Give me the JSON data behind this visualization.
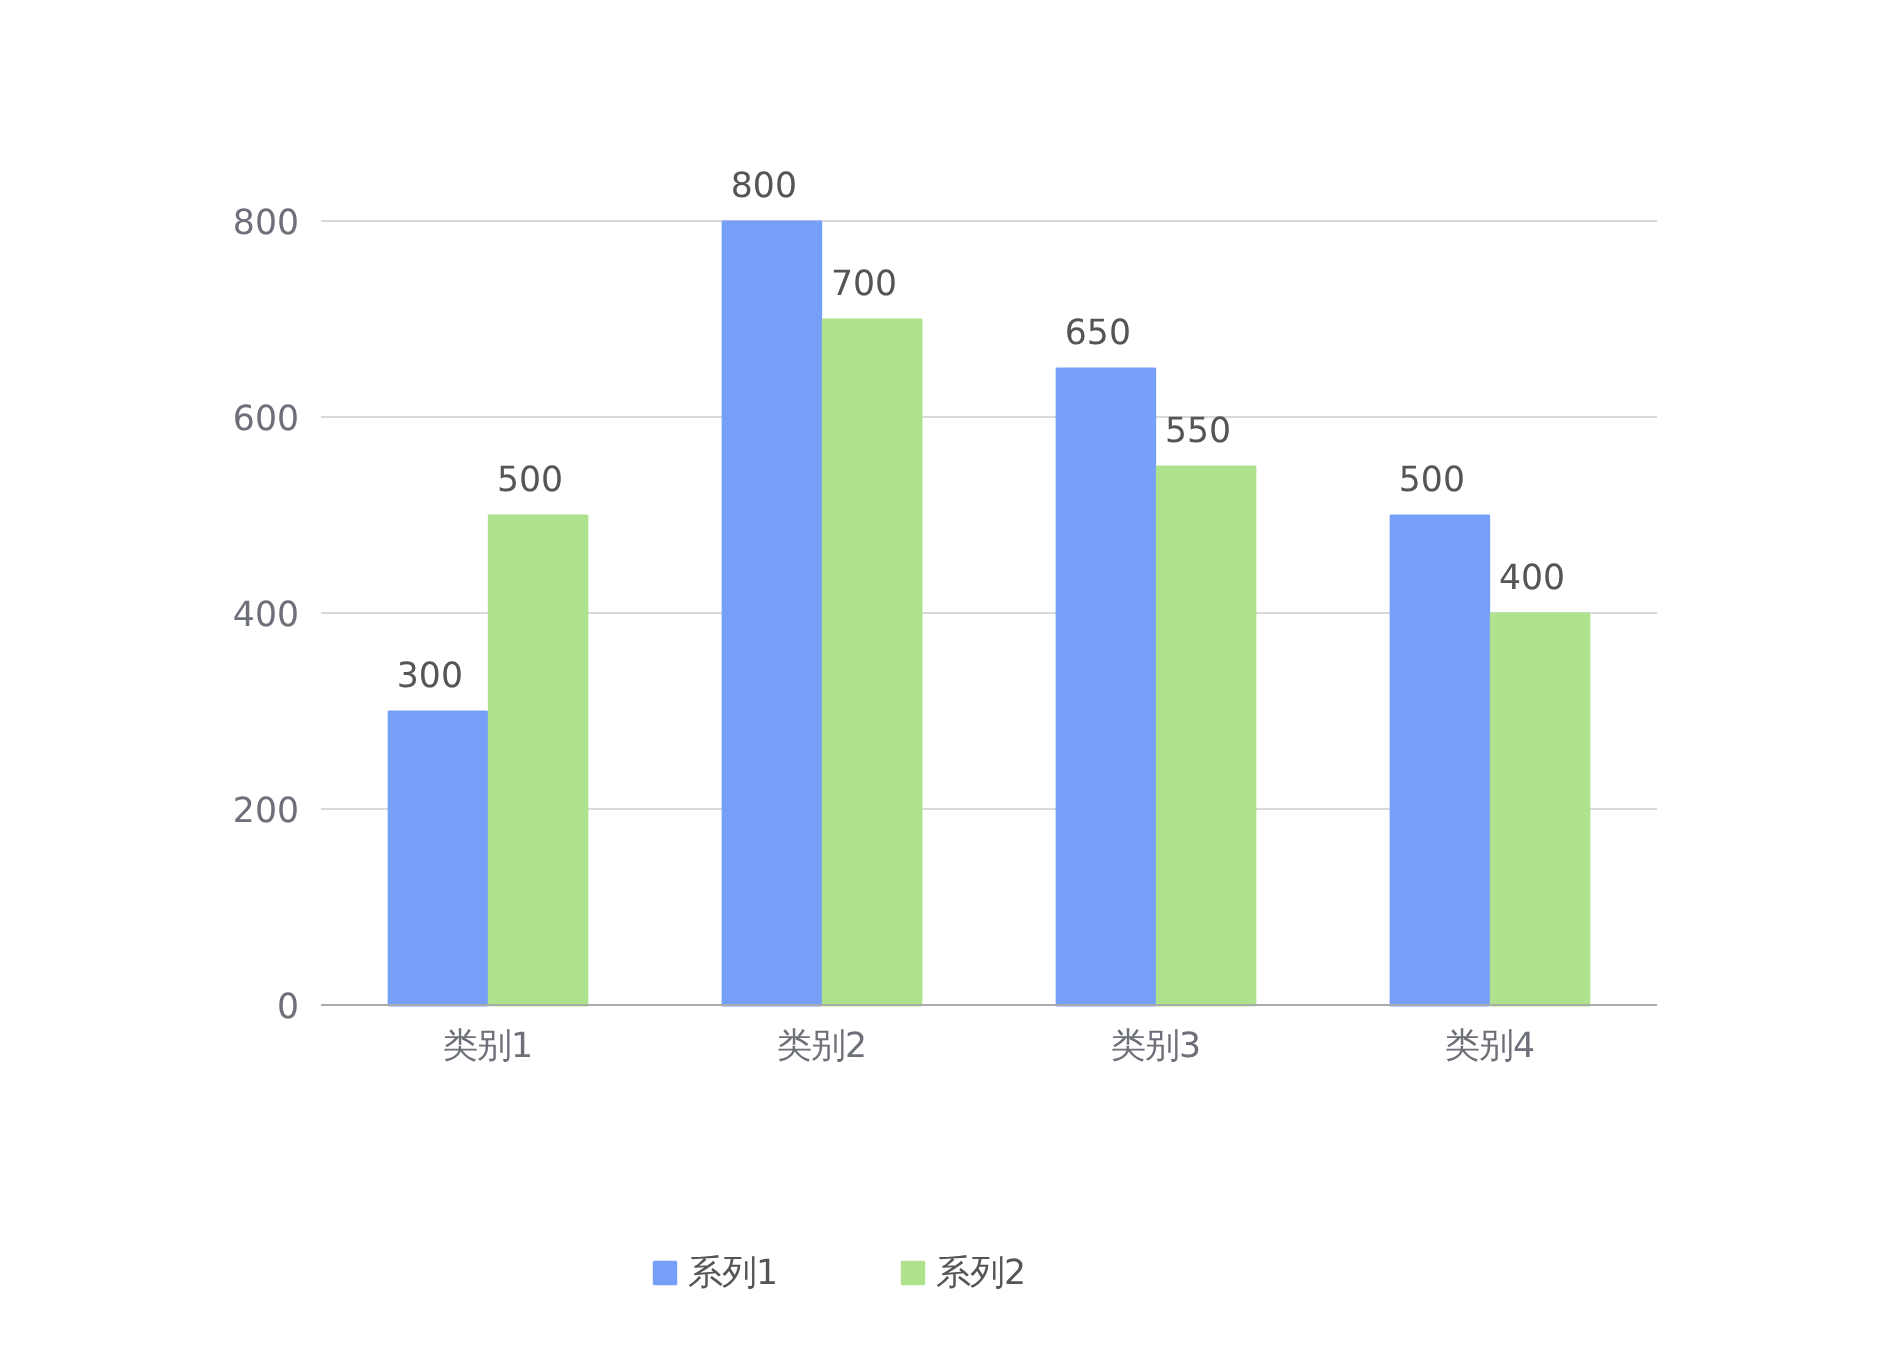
{
  "chart_data": {
    "type": "bar",
    "categories": [
      "类别1",
      "类别2",
      "类别3",
      "类别4"
    ],
    "series": [
      {
        "name": "系列1",
        "color": "#769ff7",
        "values": [
          300,
          800,
          650,
          500
        ]
      },
      {
        "name": "系列2",
        "color": "#aee28c",
        "values": [
          500,
          700,
          550,
          400
        ]
      }
    ],
    "ylim": [
      0,
      800
    ],
    "yticks": [
      0,
      200,
      400,
      600,
      800
    ],
    "grid": "y",
    "legend": "bottom",
    "data_labels": true
  }
}
